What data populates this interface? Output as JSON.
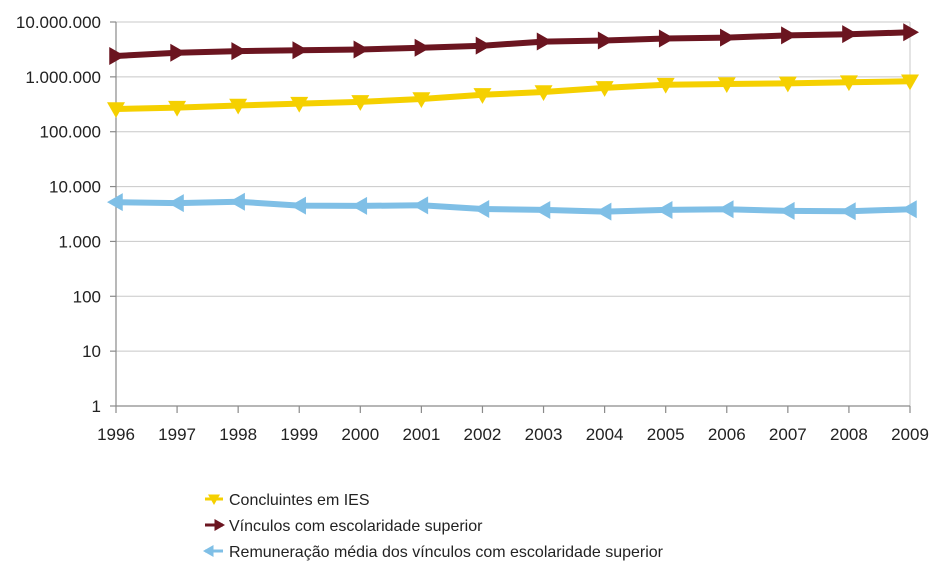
{
  "chart_data": {
    "type": "line",
    "title": "",
    "xlabel": "",
    "ylabel": "",
    "y_scale": "log",
    "ylim": [
      1,
      10000000
    ],
    "y_ticks": [
      1,
      10,
      100,
      1000,
      10000,
      100000,
      1000000,
      10000000
    ],
    "y_tick_labels": [
      "1",
      "10",
      "100",
      "1.000",
      "10.000",
      "100.000",
      "1.000.000",
      "10.000.000"
    ],
    "x": [
      "1996",
      "1997",
      "1998",
      "1999",
      "2000",
      "2001",
      "2002",
      "2003",
      "2004",
      "2005",
      "2006",
      "2007",
      "2008",
      "2009"
    ],
    "grid": true,
    "legend_position": "bottom",
    "series": [
      {
        "name": "Concluintes em IES",
        "color": "#f5d000",
        "marker": "triangle-down",
        "values": [
          260000,
          275000,
          300000,
          325000,
          350000,
          395000,
          470000,
          530000,
          630000,
          720000,
          740000,
          760000,
          800000,
          830000
        ]
      },
      {
        "name": "Vínculos com escolaridade  superior",
        "color": "#6b1520",
        "marker": "triangle-right",
        "values": [
          2400000,
          2750000,
          2950000,
          3050000,
          3150000,
          3400000,
          3700000,
          4400000,
          4600000,
          5000000,
          5200000,
          5700000,
          6000000,
          6500000
        ]
      },
      {
        "name": "Remuneração média dos vínculos com escolaridade superior",
        "color": "#7fbfe6",
        "marker": "triangle-left",
        "values": [
          5200,
          5000,
          5300,
          4500,
          4450,
          4550,
          3900,
          3750,
          3500,
          3750,
          3850,
          3600,
          3550,
          3850
        ]
      }
    ]
  }
}
